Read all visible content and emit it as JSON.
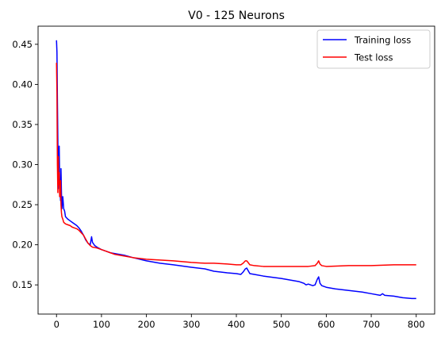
{
  "chart_data": {
    "type": "line",
    "title": "V0 - 125 Neurons",
    "xlabel": "",
    "ylabel": "",
    "xlim": [
      -41,
      841
    ],
    "ylim": [
      0.1136,
      0.4726
    ],
    "xticks": [
      0,
      100,
      200,
      300,
      400,
      500,
      600,
      700,
      800
    ],
    "yticks": [
      0.15,
      0.2,
      0.25,
      0.3,
      0.35,
      0.4,
      0.45
    ],
    "ytick_labels": [
      "0.15",
      "0.20",
      "0.25",
      "0.30",
      "0.35",
      "0.40",
      "0.45"
    ],
    "grid": false,
    "legend": "top-right",
    "series": [
      {
        "name": "Training loss",
        "color": "#0000ff",
        "x": [
          0,
          1,
          2,
          3,
          4,
          5,
          6,
          7,
          8,
          9,
          10,
          11,
          12,
          14,
          16,
          18,
          20,
          25,
          30,
          35,
          40,
          45,
          50,
          55,
          60,
          65,
          70,
          75,
          78,
          80,
          85,
          90,
          100,
          110,
          120,
          130,
          150,
          170,
          200,
          230,
          260,
          300,
          330,
          350,
          380,
          400,
          410,
          415,
          420,
          423,
          426,
          430,
          440,
          460,
          500,
          540,
          550,
          555,
          560,
          570,
          575,
          580,
          583,
          586,
          590,
          600,
          620,
          650,
          680,
          700,
          720,
          725,
          730,
          750,
          770,
          790,
          800
        ],
        "values": [
          0.455,
          0.44,
          0.38,
          0.33,
          0.27,
          0.3,
          0.323,
          0.28,
          0.27,
          0.255,
          0.295,
          0.265,
          0.245,
          0.26,
          0.245,
          0.242,
          0.235,
          0.232,
          0.23,
          0.228,
          0.226,
          0.224,
          0.221,
          0.217,
          0.212,
          0.206,
          0.202,
          0.2,
          0.21,
          0.203,
          0.199,
          0.197,
          0.194,
          0.192,
          0.19,
          0.189,
          0.187,
          0.184,
          0.18,
          0.177,
          0.175,
          0.172,
          0.17,
          0.167,
          0.165,
          0.164,
          0.163,
          0.166,
          0.17,
          0.171,
          0.168,
          0.164,
          0.163,
          0.161,
          0.158,
          0.154,
          0.152,
          0.15,
          0.151,
          0.149,
          0.15,
          0.157,
          0.16,
          0.152,
          0.149,
          0.147,
          0.145,
          0.143,
          0.141,
          0.139,
          0.137,
          0.139,
          0.137,
          0.136,
          0.134,
          0.133,
          0.133
        ]
      },
      {
        "name": "Test loss",
        "color": "#ff0000",
        "x": [
          0,
          1,
          2,
          3,
          4,
          5,
          6,
          7,
          8,
          9,
          10,
          11,
          12,
          14,
          16,
          18,
          20,
          25,
          30,
          35,
          40,
          45,
          50,
          55,
          60,
          65,
          70,
          75,
          80,
          90,
          100,
          110,
          120,
          130,
          150,
          170,
          200,
          230,
          260,
          300,
          330,
          350,
          380,
          400,
          410,
          415,
          420,
          423,
          426,
          430,
          440,
          460,
          500,
          540,
          560,
          575,
          580,
          583,
          586,
          590,
          600,
          650,
          700,
          750,
          800
        ],
        "values": [
          0.427,
          0.39,
          0.3,
          0.265,
          0.31,
          0.275,
          0.29,
          0.26,
          0.27,
          0.28,
          0.25,
          0.24,
          0.235,
          0.232,
          0.228,
          0.227,
          0.226,
          0.225,
          0.224,
          0.222,
          0.221,
          0.22,
          0.218,
          0.215,
          0.212,
          0.207,
          0.202,
          0.199,
          0.197,
          0.196,
          0.194,
          0.192,
          0.19,
          0.188,
          0.186,
          0.184,
          0.182,
          0.181,
          0.18,
          0.178,
          0.177,
          0.177,
          0.176,
          0.175,
          0.175,
          0.177,
          0.18,
          0.18,
          0.178,
          0.175,
          0.174,
          0.173,
          0.173,
          0.173,
          0.173,
          0.174,
          0.177,
          0.18,
          0.176,
          0.174,
          0.173,
          0.174,
          0.174,
          0.175,
          0.175
        ]
      }
    ]
  }
}
